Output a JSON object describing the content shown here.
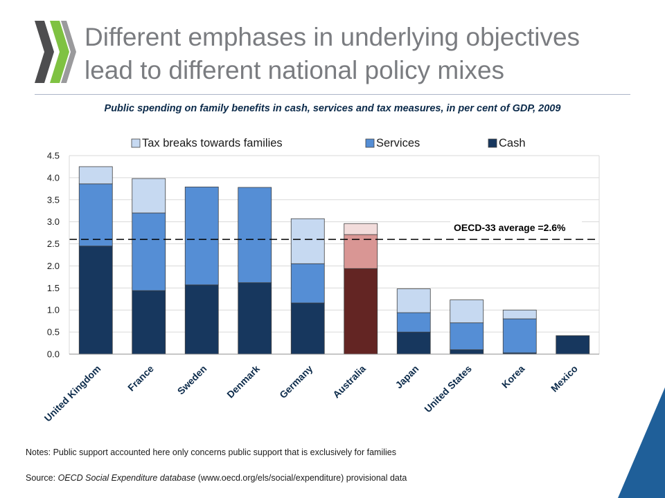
{
  "page": {
    "title_line1": "Different emphases in underlying objectives",
    "title_line2": "lead to different national policy mixes",
    "subtitle": "Public spending on family benefits in cash, services and tax measures, in per cent of GDP, 2009",
    "notes": "Notes: Public support accounted here only concerns public support that is exclusively for families",
    "source_prefix": "Source: ",
    "source_italic": "OECD Social Expenditure database",
    "source_rest": " (www.oecd.org/els/social/expenditure) provisional data"
  },
  "chart_data": {
    "type": "bar",
    "stacked": true,
    "categories": [
      "United Kingdom",
      "France",
      "Sweden",
      "Denmark",
      "Germany",
      "Australia",
      "Japan",
      "United States",
      "Korea",
      "Mexico"
    ],
    "series": [
      {
        "name": "Cash",
        "values": [
          2.45,
          1.44,
          1.57,
          1.62,
          1.16,
          1.94,
          0.5,
          0.1,
          0.03,
          0.42
        ]
      },
      {
        "name": "Services",
        "values": [
          1.41,
          1.76,
          2.22,
          2.16,
          0.89,
          0.77,
          0.44,
          0.61,
          0.77,
          0.0
        ]
      },
      {
        "name": "Tax breaks towards families",
        "values": [
          0.39,
          0.78,
          0.0,
          0.0,
          1.02,
          0.25,
          0.54,
          0.52,
          0.2,
          0.0
        ]
      }
    ],
    "legend_order": [
      "Tax breaks towards families",
      "Services",
      "Cash"
    ],
    "legend_position": "top",
    "ylim": [
      0,
      4.5
    ],
    "yticks": [
      "0.0",
      "0.5",
      "1.0",
      "1.5",
      "2.0",
      "2.5",
      "3.0",
      "3.5",
      "4.0",
      "4.5"
    ],
    "grid": true,
    "reference_line": {
      "value": 2.6,
      "label": "OECD-33 average =2.6%"
    },
    "highlight_category": "Australia",
    "colors": {
      "Cash": "#17375e",
      "Services": "#558ed5",
      "Tax breaks towards families": "#c6d9f1",
      "highlight_cash": "#632523",
      "highlight_services": "#d99694",
      "highlight_tax": "#f2dcdb",
      "grid": "#d9d9d9"
    }
  }
}
